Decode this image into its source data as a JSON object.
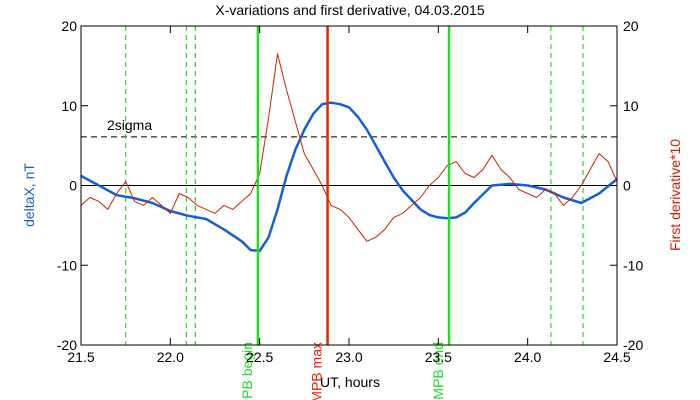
{
  "chart_data": {
    "type": "line",
    "title": "X-variations and first derivative, 04.03.2015",
    "xlabel": "UT, hours",
    "ylabel_left": "deltaX, nT",
    "ylabel_right": "First derivative*10",
    "xlim": [
      21.5,
      24.5
    ],
    "ylim": [
      -20,
      20
    ],
    "x_ticks": [
      "21.5",
      "22.0",
      "22.5",
      "23.0",
      "23.5",
      "24.0",
      "24.5"
    ],
    "y_ticks_left": [
      "20",
      "10",
      "0",
      "-10",
      "-20"
    ],
    "y_ticks_right": [
      "20",
      "10",
      "0",
      "-10",
      "-20"
    ],
    "grid": false,
    "colors": {
      "deltaX": "#1560d8",
      "derivative": "#cc2200",
      "mpb_edges": "#22dd22",
      "mpb_max": "#ee2200",
      "sigma": "#000000"
    },
    "threshold": {
      "label": "2sigma",
      "value": 6.1
    },
    "vertical_lines": [
      {
        "label": "MPB begin",
        "x": 22.49,
        "color": "#22dd22",
        "style": "solid"
      },
      {
        "label": "MPB max",
        "x": 22.88,
        "color": "#ee2200",
        "style": "solid"
      },
      {
        "label": "MPB end",
        "x": 23.56,
        "color": "#22dd22",
        "style": "solid"
      }
    ],
    "dashed_markers_x": [
      21.75,
      22.09,
      22.14,
      24.13,
      24.31
    ],
    "series": [
      {
        "key": "deltaX",
        "axis": "left",
        "x": [
          21.5,
          21.6,
          21.7,
          21.8,
          21.9,
          22.0,
          22.1,
          22.2,
          22.3,
          22.4,
          22.45,
          22.5,
          22.55,
          22.6,
          22.65,
          22.7,
          22.75,
          22.8,
          22.85,
          22.9,
          22.95,
          23.0,
          23.05,
          23.1,
          23.15,
          23.2,
          23.25,
          23.3,
          23.35,
          23.4,
          23.45,
          23.5,
          23.55,
          23.6,
          23.65,
          23.7,
          23.8,
          23.9,
          24.0,
          24.1,
          24.2,
          24.3,
          24.4,
          24.5
        ],
        "y": [
          1.2,
          0.0,
          -1.2,
          -1.6,
          -2.2,
          -3.2,
          -3.8,
          -4.2,
          -5.5,
          -7.0,
          -8.1,
          -8.2,
          -6.5,
          -3.0,
          1.2,
          4.5,
          7.0,
          9.0,
          10.2,
          10.4,
          10.2,
          9.8,
          8.6,
          7.0,
          5.0,
          3.0,
          1.0,
          -0.6,
          -1.8,
          -3.0,
          -3.7,
          -4.0,
          -4.1,
          -4.0,
          -3.4,
          -2.2,
          0.0,
          0.2,
          0.0,
          -0.5,
          -1.5,
          -2.2,
          -1.0,
          0.8
        ]
      },
      {
        "key": "derivative",
        "axis": "right",
        "x": [
          21.5,
          21.55,
          21.6,
          21.65,
          21.7,
          21.75,
          21.8,
          21.85,
          21.9,
          21.95,
          22.0,
          22.05,
          22.1,
          22.15,
          22.2,
          22.25,
          22.3,
          22.35,
          22.4,
          22.45,
          22.5,
          22.55,
          22.6,
          22.65,
          22.7,
          22.75,
          22.8,
          22.85,
          22.9,
          22.95,
          23.0,
          23.05,
          23.1,
          23.15,
          23.2,
          23.25,
          23.3,
          23.35,
          23.4,
          23.45,
          23.5,
          23.55,
          23.6,
          23.65,
          23.7,
          23.75,
          23.8,
          23.85,
          23.9,
          23.95,
          24.0,
          24.05,
          24.1,
          24.15,
          24.2,
          24.25,
          24.3,
          24.35,
          24.4,
          24.45,
          24.5
        ],
        "y": [
          -2.5,
          -1.5,
          -2.0,
          -3.0,
          -1.0,
          0.5,
          -2.0,
          -2.5,
          -1.5,
          -2.5,
          -3.5,
          -1.0,
          -1.5,
          -2.5,
          -3.0,
          -3.5,
          -2.5,
          -3.0,
          -2.0,
          -1.0,
          1.5,
          8.5,
          16.5,
          12.0,
          8.0,
          4.0,
          2.0,
          0.0,
          -2.5,
          -3.0,
          -4.0,
          -5.5,
          -7.0,
          -6.5,
          -5.5,
          -4.0,
          -3.5,
          -2.5,
          -1.5,
          0.0,
          1.0,
          2.5,
          3.0,
          1.5,
          1.0,
          2.0,
          3.8,
          2.0,
          1.0,
          -0.5,
          -1.0,
          -1.5,
          -0.5,
          -1.0,
          -2.5,
          -1.5,
          0.0,
          2.0,
          4.0,
          3.0,
          0.5
        ]
      }
    ]
  }
}
